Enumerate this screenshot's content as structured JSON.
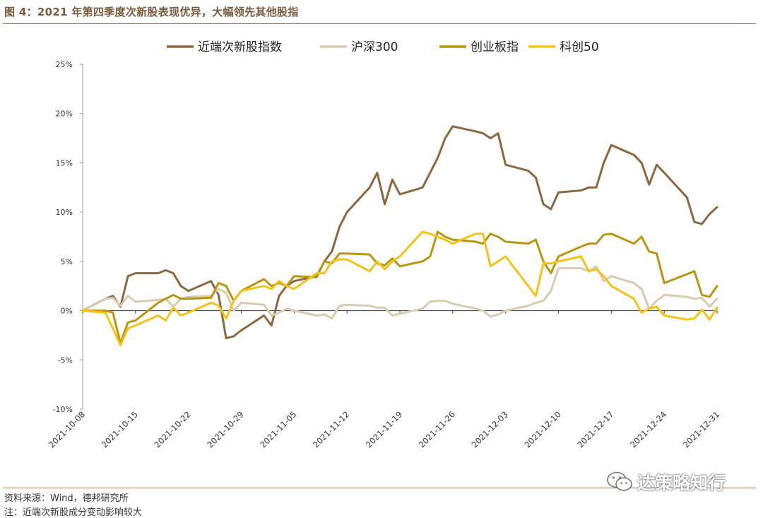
{
  "figure": {
    "title": "图 4：2021 年第四季度次新股表现优异，大幅领先其他股指",
    "source": "资料来源：Wind，德邦研究所",
    "note": "注：近端次新股成分变动影响较大",
    "watermark": "达策略知行",
    "watermark_icon": "wechat-icon"
  },
  "chart_data": {
    "type": "line",
    "ylim": [
      -0.1,
      0.25
    ],
    "yticks": [
      -0.1,
      -0.05,
      0,
      0.05,
      0.1,
      0.15,
      0.2,
      0.25
    ],
    "ytick_labels": [
      "-10%",
      "-5%",
      "0%",
      "5%",
      "10%",
      "15%",
      "20%",
      "25%"
    ],
    "xlim": [
      "2021-10-08",
      "2021-12-31"
    ],
    "xticks": [
      "2021-10-08",
      "2021-10-15",
      "2021-10-22",
      "2021-10-29",
      "2021-11-05",
      "2021-11-12",
      "2021-11-19",
      "2021-11-26",
      "2021-12-03",
      "2021-12-10",
      "2021-12-17",
      "2021-12-24",
      "2021-12-31"
    ],
    "legend_position": "top",
    "grid": false,
    "series": [
      {
        "name": "近端次新股指数",
        "color": "#8a6840",
        "x": [
          "2021-10-08",
          "2021-10-11",
          "2021-10-12",
          "2021-10-13",
          "2021-10-14",
          "2021-10-15",
          "2021-10-18",
          "2021-10-19",
          "2021-10-20",
          "2021-10-21",
          "2021-10-22",
          "2021-10-25",
          "2021-10-26",
          "2021-10-27",
          "2021-10-28",
          "2021-10-29",
          "2021-11-01",
          "2021-11-02",
          "2021-11-03",
          "2021-11-04",
          "2021-11-05",
          "2021-11-08",
          "2021-11-09",
          "2021-11-10",
          "2021-11-11",
          "2021-11-12",
          "2021-11-15",
          "2021-11-16",
          "2021-11-17",
          "2021-11-18",
          "2021-11-19",
          "2021-11-22",
          "2021-11-23",
          "2021-11-24",
          "2021-11-25",
          "2021-11-26",
          "2021-11-29",
          "2021-11-30",
          "2021-12-01",
          "2021-12-02",
          "2021-12-03",
          "2021-12-06",
          "2021-12-07",
          "2021-12-08",
          "2021-12-09",
          "2021-12-10",
          "2021-12-13",
          "2021-12-14",
          "2021-12-15",
          "2021-12-16",
          "2021-12-17",
          "2021-12-20",
          "2021-12-21",
          "2021-12-22",
          "2021-12-23",
          "2021-12-24",
          "2021-12-27",
          "2021-12-28",
          "2021-12-29",
          "2021-12-30",
          "2021-12-31"
        ],
        "values": [
          0.0,
          0.012,
          0.015,
          0.004,
          0.035,
          0.038,
          0.038,
          0.041,
          0.038,
          0.025,
          0.02,
          0.03,
          0.016,
          -0.028,
          -0.026,
          -0.02,
          -0.005,
          -0.015,
          0.015,
          0.025,
          0.03,
          0.035,
          0.05,
          0.06,
          0.085,
          0.1,
          0.125,
          0.14,
          0.108,
          0.133,
          0.118,
          0.125,
          0.14,
          0.155,
          0.175,
          0.187,
          0.182,
          0.18,
          0.175,
          0.18,
          0.148,
          0.142,
          0.135,
          0.108,
          0.103,
          0.12,
          0.122,
          0.125,
          0.125,
          0.15,
          0.168,
          0.158,
          0.15,
          0.128,
          0.148,
          0.14,
          0.115,
          0.09,
          0.088,
          0.098,
          0.105
        ]
      },
      {
        "name": "沪深300",
        "color": "#d9cbb2",
        "x": [
          "2021-10-08",
          "2021-10-11",
          "2021-10-12",
          "2021-10-13",
          "2021-10-14",
          "2021-10-15",
          "2021-10-18",
          "2021-10-19",
          "2021-10-20",
          "2021-10-21",
          "2021-10-22",
          "2021-10-25",
          "2021-10-26",
          "2021-10-27",
          "2021-10-28",
          "2021-10-29",
          "2021-11-01",
          "2021-11-02",
          "2021-11-03",
          "2021-11-04",
          "2021-11-05",
          "2021-11-08",
          "2021-11-09",
          "2021-11-10",
          "2021-11-11",
          "2021-11-12",
          "2021-11-15",
          "2021-11-16",
          "2021-11-17",
          "2021-11-18",
          "2021-11-19",
          "2021-11-22",
          "2021-11-23",
          "2021-11-24",
          "2021-11-25",
          "2021-11-26",
          "2021-11-29",
          "2021-11-30",
          "2021-12-01",
          "2021-12-02",
          "2021-12-03",
          "2021-12-06",
          "2021-12-07",
          "2021-12-08",
          "2021-12-09",
          "2021-12-10",
          "2021-12-13",
          "2021-12-14",
          "2021-12-15",
          "2021-12-16",
          "2021-12-17",
          "2021-12-20",
          "2021-12-21",
          "2021-12-22",
          "2021-12-23",
          "2021-12-24",
          "2021-12-27",
          "2021-12-28",
          "2021-12-29",
          "2021-12-30",
          "2021-12-31"
        ],
        "values": [
          0.0,
          0.012,
          0.013,
          0.005,
          0.015,
          0.009,
          0.011,
          0.012,
          0.004,
          0.012,
          0.014,
          0.015,
          0.022,
          0.018,
          0.0,
          0.008,
          0.006,
          -0.005,
          -0.002,
          0.002,
          0.0,
          -0.005,
          -0.004,
          -0.008,
          0.005,
          0.006,
          0.005,
          0.003,
          0.003,
          -0.005,
          -0.003,
          0.002,
          0.009,
          0.01,
          0.01,
          0.007,
          0.002,
          0.0,
          -0.006,
          -0.004,
          0.0,
          0.005,
          0.008,
          0.01,
          0.02,
          0.043,
          0.043,
          0.04,
          0.045,
          0.03,
          0.035,
          0.028,
          0.022,
          0.002,
          0.01,
          0.016,
          0.014,
          0.012,
          0.013,
          0.004,
          0.012
        ]
      },
      {
        "name": "创业板指",
        "color": "#b8960f",
        "x": [
          "2021-10-08",
          "2021-10-11",
          "2021-10-12",
          "2021-10-13",
          "2021-10-14",
          "2021-10-15",
          "2021-10-18",
          "2021-10-19",
          "2021-10-20",
          "2021-10-21",
          "2021-10-22",
          "2021-10-25",
          "2021-10-26",
          "2021-10-27",
          "2021-10-28",
          "2021-10-29",
          "2021-11-01",
          "2021-11-02",
          "2021-11-03",
          "2021-11-04",
          "2021-11-05",
          "2021-11-08",
          "2021-11-09",
          "2021-11-10",
          "2021-11-11",
          "2021-11-12",
          "2021-11-15",
          "2021-11-16",
          "2021-11-17",
          "2021-11-18",
          "2021-11-19",
          "2021-11-22",
          "2021-11-23",
          "2021-11-24",
          "2021-11-25",
          "2021-11-26",
          "2021-11-29",
          "2021-11-30",
          "2021-12-01",
          "2021-12-02",
          "2021-12-03",
          "2021-12-06",
          "2021-12-07",
          "2021-12-08",
          "2021-12-09",
          "2021-12-10",
          "2021-12-13",
          "2021-12-14",
          "2021-12-15",
          "2021-12-16",
          "2021-12-17",
          "2021-12-20",
          "2021-12-21",
          "2021-12-22",
          "2021-12-23",
          "2021-12-24",
          "2021-12-27",
          "2021-12-28",
          "2021-12-29",
          "2021-12-30",
          "2021-12-31"
        ],
        "values": [
          0.0,
          0.0,
          -0.002,
          -0.033,
          -0.012,
          -0.01,
          0.008,
          0.012,
          0.016,
          0.012,
          0.012,
          0.013,
          0.028,
          0.025,
          0.01,
          0.02,
          0.032,
          0.025,
          0.028,
          0.025,
          0.035,
          0.034,
          0.05,
          0.048,
          0.058,
          0.058,
          0.057,
          0.048,
          0.046,
          0.053,
          0.045,
          0.05,
          0.055,
          0.08,
          0.075,
          0.072,
          0.07,
          0.068,
          0.078,
          0.075,
          0.07,
          0.068,
          0.072,
          0.05,
          0.038,
          0.055,
          0.065,
          0.068,
          0.068,
          0.077,
          0.078,
          0.068,
          0.075,
          0.06,
          0.058,
          0.028,
          0.037,
          0.04,
          0.016,
          0.014,
          0.025
        ]
      },
      {
        "name": "科创50",
        "color": "#f5c316",
        "x": [
          "2021-10-08",
          "2021-10-11",
          "2021-10-12",
          "2021-10-13",
          "2021-10-14",
          "2021-10-15",
          "2021-10-18",
          "2021-10-19",
          "2021-10-20",
          "2021-10-21",
          "2021-10-22",
          "2021-10-25",
          "2021-10-26",
          "2021-10-27",
          "2021-10-28",
          "2021-10-29",
          "2021-11-01",
          "2021-11-02",
          "2021-11-03",
          "2021-11-04",
          "2021-11-05",
          "2021-11-08",
          "2021-11-09",
          "2021-11-10",
          "2021-11-11",
          "2021-11-12",
          "2021-11-15",
          "2021-11-16",
          "2021-11-17",
          "2021-11-18",
          "2021-11-19",
          "2021-11-22",
          "2021-11-23",
          "2021-11-24",
          "2021-11-25",
          "2021-11-26",
          "2021-11-29",
          "2021-11-30",
          "2021-12-01",
          "2021-12-02",
          "2021-12-03",
          "2021-12-06",
          "2021-12-07",
          "2021-12-08",
          "2021-12-09",
          "2021-12-10",
          "2021-12-13",
          "2021-12-14",
          "2021-12-15",
          "2021-12-16",
          "2021-12-17",
          "2021-12-20",
          "2021-12-21",
          "2021-12-22",
          "2021-12-23",
          "2021-12-24",
          "2021-12-27",
          "2021-12-28",
          "2021-12-29",
          "2021-12-30",
          "2021-12-31"
        ],
        "values": [
          0.0,
          -0.002,
          -0.018,
          -0.035,
          -0.018,
          -0.015,
          -0.005,
          -0.01,
          0.003,
          -0.005,
          -0.002,
          0.008,
          0.005,
          -0.008,
          0.01,
          0.02,
          0.025,
          0.022,
          0.03,
          0.025,
          0.022,
          0.038,
          0.038,
          0.05,
          0.052,
          0.052,
          0.04,
          0.05,
          0.042,
          0.05,
          0.055,
          0.08,
          0.078,
          0.075,
          0.072,
          0.068,
          0.078,
          0.078,
          0.045,
          0.05,
          0.055,
          0.025,
          0.015,
          0.048,
          0.048,
          0.05,
          0.055,
          0.04,
          0.042,
          0.035,
          0.025,
          0.012,
          -0.002,
          0.002,
          0.004,
          -0.005,
          -0.009,
          -0.008,
          0.001,
          -0.009,
          0.003
        ]
      }
    ]
  }
}
